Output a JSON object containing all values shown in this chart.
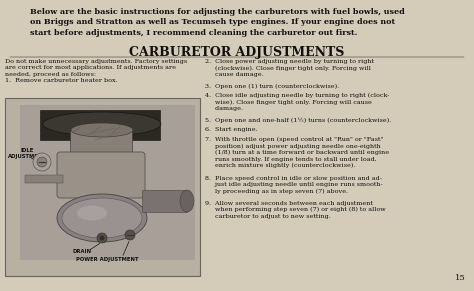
{
  "bg_color": "#c8c0b0",
  "page_color": "#d4cbb8",
  "title_intro": "Below are the basic instructions for adjusting the carburetors with fuel bowls, used\non Briggs and Stratton as well as Tecumseh type engines. If your engine does not\nstart before adjustments, I recommend cleaning the carburetor out first.",
  "main_title": "CARBURETOR ADJUSTMENTS",
  "left_col_text": "Do not make unnecessary adjustments. Factory settings\nare correct for most applications. If adjustments are\nneeded, proceed as follows:\n1.  Remove carburetor heater box.",
  "right_col_items": [
    "2.  Close power adjusting needle by turning to right\n     (clockwise). Close finger tight only. Forcing will\n     cause damage.",
    "3.  Open one (1) turn (counterclockwise).",
    "4.  Close idle adjusting needle by turning to right (clock-\n     wise). Close finger tight only. Forcing will cause\n     damage.",
    "5.  Open one and one-half (1½) turns (counterclockwise).",
    "6.  Start engine.",
    "7.  With throttle open (speed control at \"Run\" or \"Fast\"\n     position) adjust power adjusting needle one-eighth\n     (1/8) turn at a time forward or backward until engine\n     runs smoothly. If engine tends to stall under load,\n     enrich mixture slightly (counterclockwise).",
    "8.  Place speed control in idle or slow position and ad-\n     just idle adjusting needle until engine runs smooth-\n     ly proceeding as in step seven (7) above.",
    "9.  Allow several seconds between each adjustment\n     when performing step seven (7) or eight (8) to allow\n     carburetor to adjust to new setting."
  ],
  "page_number": "15",
  "text_color": "#111111",
  "border_color": "#666666",
  "diagram_bg": "#b8b0a0"
}
